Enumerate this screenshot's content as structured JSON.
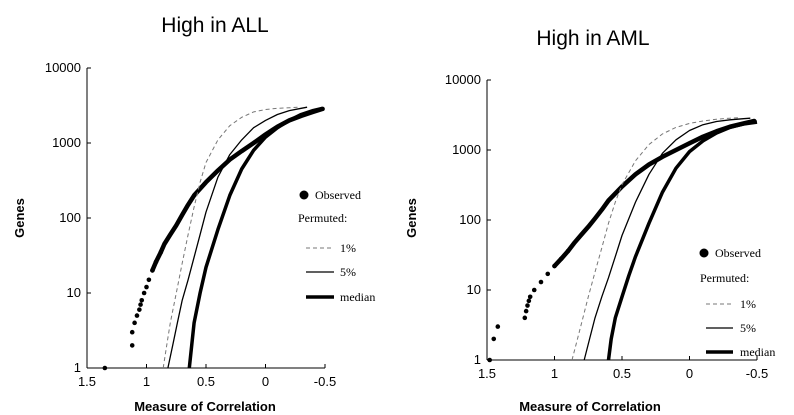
{
  "chart_data": [
    {
      "type": "line",
      "title": "High in ALL",
      "xlabel": "Measure of Correlation",
      "ylabel": "Genes",
      "xlim": [
        1.5,
        -0.5
      ],
      "ylim": [
        1,
        10000
      ],
      "yscale": "log",
      "xticks": [
        "1.5",
        "1",
        "0.5",
        "0",
        "-0.5"
      ],
      "yticks": [
        "1",
        "10",
        "100",
        "1000",
        "10000"
      ],
      "legend_placement": "right",
      "legend": {
        "observed": "Observed",
        "heading": "Permuted:",
        "p1": "1%",
        "p5": "5%",
        "median": "median"
      },
      "series": [
        {
          "name": "Observed",
          "style": "dots",
          "x": [
            1.35,
            1.12,
            1.12,
            1.1,
            1.08,
            1.06,
            1.05,
            1.04,
            1.02,
            1.0,
            0.98,
            0.95,
            0.92,
            0.88,
            0.85,
            0.8,
            0.75,
            0.7,
            0.65,
            0.6,
            0.5,
            0.4,
            0.3,
            0.2,
            0.1,
            0.0,
            -0.1,
            -0.2,
            -0.3,
            -0.4,
            -0.48
          ],
          "y": [
            1,
            2,
            3,
            4,
            5,
            6,
            7,
            8,
            10,
            12,
            15,
            20,
            26,
            35,
            45,
            60,
            80,
            110,
            150,
            200,
            300,
            430,
            600,
            780,
            1000,
            1300,
            1650,
            2000,
            2300,
            2600,
            2850
          ]
        },
        {
          "name": "1%",
          "style": "dashed",
          "x": [
            0.86,
            0.83,
            0.8,
            0.75,
            0.7,
            0.65,
            0.6,
            0.55,
            0.5,
            0.4,
            0.3,
            0.2,
            0.1,
            0.0,
            -0.1,
            -0.2,
            -0.28
          ],
          "y": [
            1,
            2,
            4,
            10,
            25,
            60,
            140,
            300,
            550,
            1100,
            1700,
            2200,
            2600,
            2800,
            2900,
            2950,
            3000
          ]
        },
        {
          "name": "5%",
          "style": "thin",
          "x": [
            0.82,
            0.78,
            0.74,
            0.7,
            0.65,
            0.6,
            0.55,
            0.5,
            0.4,
            0.3,
            0.2,
            0.1,
            0.0,
            -0.1,
            -0.2,
            -0.3,
            -0.35
          ],
          "y": [
            1,
            2,
            4,
            8,
            15,
            30,
            60,
            120,
            350,
            700,
            1100,
            1600,
            2000,
            2400,
            2700,
            2900,
            3000
          ]
        },
        {
          "name": "median",
          "style": "thick",
          "x": [
            0.64,
            0.62,
            0.6,
            0.55,
            0.5,
            0.4,
            0.3,
            0.2,
            0.1,
            0.0,
            -0.1,
            -0.2,
            -0.3,
            -0.4,
            -0.48
          ],
          "y": [
            1,
            2,
            4,
            10,
            22,
            70,
            200,
            450,
            800,
            1200,
            1600,
            2000,
            2400,
            2700,
            2900
          ]
        }
      ]
    },
    {
      "type": "line",
      "title": "High in AML",
      "xlabel": "Measure of Correlation",
      "ylabel": "Genes",
      "xlim": [
        1.5,
        -0.5
      ],
      "ylim": [
        1,
        10000
      ],
      "yscale": "log",
      "xticks": [
        "1.5",
        "1",
        "0.5",
        "0",
        "-0.5"
      ],
      "yticks": [
        "1",
        "10",
        "100",
        "1000",
        "10000"
      ],
      "legend_placement": "right",
      "legend": {
        "observed": "Observed",
        "heading": "Permuted:",
        "p1": "1%",
        "p5": "5%",
        "median": "median"
      },
      "series": [
        {
          "name": "Observed",
          "style": "dots",
          "x": [
            1.48,
            1.45,
            1.42,
            1.22,
            1.21,
            1.2,
            1.19,
            1.18,
            1.15,
            1.1,
            1.05,
            1.0,
            0.95,
            0.9,
            0.85,
            0.8,
            0.75,
            0.7,
            0.65,
            0.6,
            0.5,
            0.4,
            0.3,
            0.2,
            0.1,
            0.0,
            -0.1,
            -0.2,
            -0.3,
            -0.4,
            -0.48
          ],
          "y": [
            1,
            2,
            3,
            4,
            5,
            6,
            7,
            8,
            10,
            13,
            17,
            22,
            28,
            36,
            48,
            62,
            80,
            105,
            140,
            190,
            300,
            450,
            620,
            800,
            1000,
            1250,
            1550,
            1850,
            2150,
            2400,
            2600
          ]
        },
        {
          "name": "1%",
          "style": "dashed",
          "x": [
            0.87,
            0.83,
            0.79,
            0.75,
            0.7,
            0.65,
            0.6,
            0.55,
            0.5,
            0.4,
            0.3,
            0.2,
            0.1,
            0.0,
            -0.1,
            -0.2,
            -0.3,
            -0.38
          ],
          "y": [
            1,
            2,
            4,
            8,
            18,
            40,
            90,
            180,
            320,
            700,
            1200,
            1700,
            2100,
            2400,
            2600,
            2750,
            2850,
            2900
          ]
        },
        {
          "name": "5%",
          "style": "thin",
          "x": [
            0.78,
            0.74,
            0.7,
            0.65,
            0.6,
            0.55,
            0.5,
            0.4,
            0.3,
            0.2,
            0.1,
            0.0,
            -0.1,
            -0.2,
            -0.3,
            -0.4,
            -0.45
          ],
          "y": [
            1,
            2,
            4,
            8,
            15,
            30,
            60,
            180,
            450,
            900,
            1400,
            1900,
            2300,
            2550,
            2700,
            2800,
            2850
          ]
        },
        {
          "name": "median",
          "style": "thick",
          "x": [
            0.6,
            0.58,
            0.55,
            0.5,
            0.45,
            0.4,
            0.3,
            0.2,
            0.1,
            0.0,
            -0.1,
            -0.2,
            -0.3,
            -0.4,
            -0.5
          ],
          "y": [
            1,
            2,
            4,
            8,
            16,
            30,
            90,
            250,
            550,
            950,
            1350,
            1750,
            2100,
            2350,
            2500
          ]
        }
      ]
    }
  ]
}
